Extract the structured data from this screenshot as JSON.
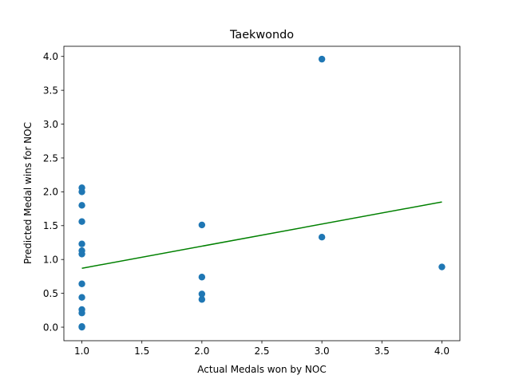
{
  "chart_data": {
    "type": "scatter",
    "title": "Taekwondo",
    "xlabel": "Actual Medals won by NOC",
    "ylabel": "Predicted Medal wins for NOC",
    "xlim": [
      0.85,
      4.15
    ],
    "ylim": [
      -0.2,
      4.15
    ],
    "xticks": [
      1.0,
      1.5,
      2.0,
      2.5,
      3.0,
      3.5,
      4.0
    ],
    "xtick_labels": [
      "1.0",
      "1.5",
      "2.0",
      "2.5",
      "3.0",
      "3.5",
      "4.0"
    ],
    "yticks": [
      0.0,
      0.5,
      1.0,
      1.5,
      2.0,
      2.5,
      3.0,
      3.5,
      4.0
    ],
    "ytick_labels": [
      "0.0",
      "0.5",
      "1.0",
      "1.5",
      "2.0",
      "2.5",
      "3.0",
      "3.5",
      "4.0"
    ],
    "grid": false,
    "legend": "none",
    "series": [
      {
        "kind": "scatter",
        "color": "#1f77b4",
        "points": [
          {
            "x": 1,
            "y": 2.06
          },
          {
            "x": 1,
            "y": 2.0
          },
          {
            "x": 1,
            "y": 1.8
          },
          {
            "x": 1,
            "y": 1.56
          },
          {
            "x": 1,
            "y": 1.23
          },
          {
            "x": 1,
            "y": 1.13
          },
          {
            "x": 1,
            "y": 1.08
          },
          {
            "x": 1,
            "y": 0.64
          },
          {
            "x": 1,
            "y": 0.44
          },
          {
            "x": 1,
            "y": 0.26
          },
          {
            "x": 1,
            "y": 0.21
          },
          {
            "x": 1,
            "y": 0.01
          },
          {
            "x": 1,
            "y": 0.0
          },
          {
            "x": 2,
            "y": 1.51
          },
          {
            "x": 2,
            "y": 0.74
          },
          {
            "x": 2,
            "y": 0.49
          },
          {
            "x": 2,
            "y": 0.41
          },
          {
            "x": 3,
            "y": 3.96
          },
          {
            "x": 3,
            "y": 1.33
          },
          {
            "x": 4,
            "y": 0.89
          }
        ]
      },
      {
        "kind": "line",
        "color": "#008000",
        "points": [
          {
            "x": 1,
            "y": 0.87
          },
          {
            "x": 4,
            "y": 1.85
          }
        ]
      }
    ]
  }
}
